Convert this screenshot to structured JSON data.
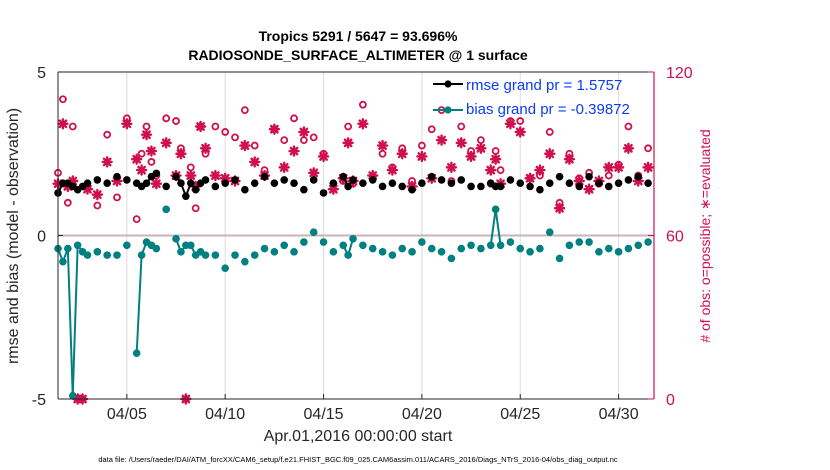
{
  "chart_data": {
    "type": "line",
    "title": "Tropics 5291 / 5647 = 93.696%",
    "subtitle": "RADIOSONDE_SURFACE_ALTIMETER @ 1 surface",
    "xlabel": "Apr.01,2016 00:00:00 start",
    "ylabel": "rmse and bias (model - observation)",
    "ylabel_right": "# of obs: o=possible; ∗=evaluated",
    "footer": "data file: /Users/raeder/DAI/ATM_forcXX/CAM6_setup/f.e21.FHIST_BGC.f09_025.CAM6assim.011/ACARS_2016/Diags_NTrS_2016-04/obs_diag_output.nc",
    "x_unit": "days since Apr.01,2016 00:00",
    "xlim": [
      0.5,
      30.8
    ],
    "ylim": [
      -5,
      5
    ],
    "ylim_right": [
      0,
      120
    ],
    "x_ticks": [
      {
        "value": 4,
        "label": "04/05"
      },
      {
        "value": 9,
        "label": "04/10"
      },
      {
        "value": 14,
        "label": "04/15"
      },
      {
        "value": 19,
        "label": "04/20"
      },
      {
        "value": 24,
        "label": "04/25"
      },
      {
        "value": 29,
        "label": "04/30"
      }
    ],
    "y_ticks": [
      {
        "value": -5,
        "label": "-5"
      },
      {
        "value": 0,
        "label": "0"
      },
      {
        "value": 5,
        "label": "5"
      }
    ],
    "y_ticks_right": [
      {
        "value": 0,
        "label": "0"
      },
      {
        "value": 60,
        "label": "60"
      },
      {
        "value": 120,
        "label": "120"
      }
    ],
    "grid": true,
    "zero_line": true,
    "legend_position": "top-right",
    "legend": [
      {
        "name": "rmse",
        "label": "rmse grand pr = 1.5757",
        "color": "#000000"
      },
      {
        "name": "bias",
        "label": "bias grand pr = -0.39872",
        "color": "#008080"
      }
    ],
    "colors": {
      "rmse": "#000000",
      "bias": "#008080",
      "obs": "#d0104c",
      "text_blue": "#0b3df5"
    },
    "x": [
      0.5,
      0.75,
      1.0,
      1.25,
      1.5,
      1.75,
      2.0,
      2.5,
      3.0,
      3.5,
      4.0,
      4.5,
      4.75,
      5.0,
      5.25,
      5.5,
      6.0,
      6.5,
      6.75,
      7.0,
      7.25,
      7.5,
      7.75,
      8.0,
      8.5,
      9.0,
      9.5,
      10.0,
      10.5,
      11.0,
      11.5,
      12.0,
      12.5,
      13.0,
      13.5,
      14.0,
      14.5,
      15.0,
      15.25,
      15.5,
      16.0,
      16.5,
      17.0,
      17.5,
      18.0,
      18.5,
      19.0,
      19.5,
      20.0,
      20.5,
      21.0,
      21.5,
      22.0,
      22.5,
      22.75,
      23.0,
      23.5,
      24.0,
      24.5,
      25.0,
      25.5,
      26.0,
      26.5,
      27.0,
      27.5,
      28.0,
      28.5,
      29.0,
      29.5,
      30.0,
      30.5
    ],
    "series": [
      {
        "name": "rmse",
        "marker": "filled-circle",
        "values": [
          1.3,
          1.6,
          1.6,
          1.5,
          1.4,
          1.5,
          1.6,
          1.7,
          1.6,
          1.8,
          1.7,
          1.6,
          1.5,
          1.6,
          1.8,
          1.9,
          1.5,
          1.8,
          1.6,
          1.2,
          1.6,
          1.4,
          1.6,
          1.7,
          1.5,
          1.6,
          1.7,
          1.4,
          1.6,
          1.8,
          1.6,
          1.7,
          1.6,
          1.4,
          1.7,
          1.3,
          1.6,
          1.8,
          1.5,
          1.7,
          1.6,
          1.7,
          1.5,
          1.6,
          1.5,
          1.4,
          1.6,
          1.8,
          1.7,
          1.6,
          1.7,
          1.5,
          1.5,
          1.6,
          1.5,
          1.5,
          1.7,
          1.6,
          1.5,
          1.4,
          1.6,
          1.8,
          1.6,
          1.5,
          1.8,
          1.6,
          1.5,
          1.6,
          1.7,
          1.8,
          1.6
        ]
      },
      {
        "name": "bias",
        "marker": "filled-circle",
        "values": [
          -0.4,
          -0.8,
          -0.4,
          -4.9,
          -0.3,
          -0.5,
          -0.6,
          -0.5,
          -0.6,
          -0.6,
          -0.3,
          -3.6,
          -0.6,
          -0.2,
          -0.3,
          -0.4,
          0.8,
          -0.1,
          -0.5,
          -0.3,
          -0.3,
          -0.6,
          -0.5,
          -0.6,
          -0.6,
          -1.0,
          -0.6,
          -0.8,
          -0.6,
          -0.4,
          -0.5,
          -0.3,
          -0.5,
          -0.2,
          0.1,
          -0.2,
          -0.5,
          -0.3,
          -0.6,
          -0.1,
          -0.3,
          -0.4,
          -0.5,
          -0.6,
          -0.4,
          -0.5,
          -0.2,
          -0.4,
          -0.5,
          -0.7,
          -0.4,
          -0.3,
          -0.4,
          -0.3,
          0.8,
          -0.3,
          -0.2,
          -0.4,
          -0.5,
          -0.4,
          0.1,
          -0.7,
          -0.3,
          -0.2,
          -0.2,
          -0.5,
          -0.4,
          -0.5,
          -0.4,
          -0.3,
          -0.2
        ]
      },
      {
        "name": "obs_possible",
        "axis": "right",
        "marker": "open-circle",
        "values": [
          83,
          110,
          72,
          100,
          0,
          0,
          78,
          71,
          97,
          74,
          103,
          66,
          90,
          100,
          87,
          82,
          103,
          102,
          92,
          0,
          85,
          70,
          100,
          90,
          100,
          98,
          96,
          106,
          93,
          84,
          99,
          95,
          103,
          95,
          96,
          90,
          79,
          80,
          100,
          79,
          108,
          81,
          90,
          85,
          92,
          80,
          93,
          99,
          106,
          80,
          100,
          91,
          95,
          79,
          91,
          84,
          102,
          102,
          81,
          82,
          98,
          72,
          90,
          81,
          83,
          79,
          82,
          86,
          100,
          82,
          92
        ]
      },
      {
        "name": "obs_evaluated",
        "axis": "right",
        "marker": "asterisk",
        "values": [
          79,
          101,
          78,
          80,
          0,
          0,
          77,
          75,
          87,
          80,
          101,
          88,
          84,
          97,
          91,
          79,
          94,
          82,
          90,
          0,
          82,
          78,
          100,
          92,
          82,
          81,
          80,
          93,
          87,
          82,
          99,
          85,
          91,
          98,
          83,
          89,
          77,
          81,
          94,
          80,
          101,
          82,
          93,
          84,
          90,
          78,
          89,
          81,
          95,
          85,
          94,
          89,
          92,
          84,
          88,
          79,
          101,
          98,
          81,
          84,
          90,
          70,
          88,
          80,
          77,
          80,
          85,
          85,
          92,
          80,
          85
        ]
      }
    ]
  }
}
